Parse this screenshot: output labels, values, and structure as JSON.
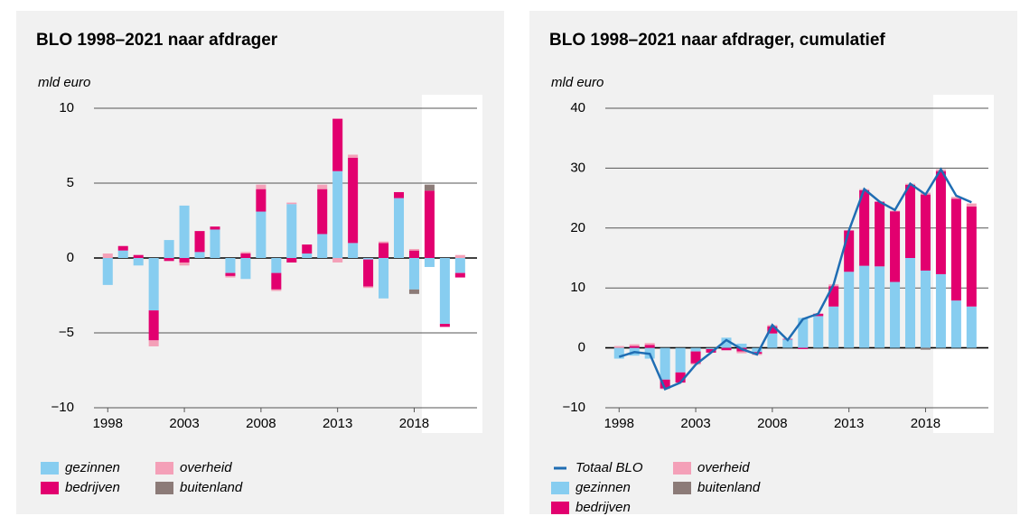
{
  "chart_data": [
    {
      "type": "bar",
      "stacked": true,
      "title": "BLO 1998–2021 naar afdrager",
      "y_label": "mld euro",
      "x": [
        1998,
        1999,
        2000,
        2001,
        2002,
        2003,
        2004,
        2005,
        2006,
        2007,
        2008,
        2009,
        2010,
        2011,
        2012,
        2013,
        2014,
        2015,
        2016,
        2017,
        2018,
        2019,
        2020,
        2021
      ],
      "xlim": [
        1997.1,
        2022.1
      ],
      "xticks": [
        1998,
        2003,
        2008,
        2013,
        2018
      ],
      "ylim": [
        -10,
        10
      ],
      "yticks": [
        {
          "value": -10,
          "label": "−10"
        },
        {
          "value": -5,
          "label": "−5"
        },
        0,
        5,
        10
      ],
      "grid": true,
      "shade_from": 2019,
      "series": [
        {
          "name": "gezinnen",
          "color": "#87cdf0",
          "values": [
            -1.8,
            0.5,
            -0.5,
            -3.5,
            1.2,
            3.5,
            0.4,
            1.9,
            -1.0,
            -1.4,
            3.1,
            -1.0,
            3.6,
            0.3,
            1.6,
            5.8,
            1.0,
            -0.1,
            -2.7,
            4.0,
            -2.1,
            -0.6,
            -4.4,
            -1.0
          ]
        },
        {
          "name": "bedrijven",
          "color": "#e2006f",
          "values": [
            0,
            0.3,
            0.2,
            -2.0,
            -0.2,
            -0.3,
            1.4,
            0.2,
            -0.2,
            0.3,
            1.5,
            -1.1,
            -0.3,
            0.6,
            3.0,
            3.5,
            5.7,
            -1.8,
            1.0,
            0.4,
            0.5,
            4.5,
            -0.2,
            -0.3
          ]
        },
        {
          "name": "overheid",
          "color": "#f4a0b8",
          "values": [
            0.3,
            0,
            0,
            -0.4,
            0,
            -0.2,
            0,
            0,
            -0.1,
            0.1,
            0.3,
            -0.1,
            0.1,
            0,
            0.3,
            -0.3,
            0.2,
            -0.1,
            0.1,
            0,
            0.1,
            0,
            0,
            0.2
          ]
        },
        {
          "name": "buitenland",
          "color": "#8c7b78",
          "values": [
            0,
            0,
            0,
            0,
            0,
            0,
            0,
            0,
            0,
            0,
            0,
            0,
            0,
            0,
            0,
            0,
            0,
            0,
            0,
            0,
            -0.3,
            0.4,
            0,
            0
          ]
        }
      ]
    },
    {
      "type": "bar",
      "stacked": true,
      "title": "BLO 1998–2021 naar afdrager, cumulatief",
      "y_label": "mld euro",
      "x": [
        1998,
        1999,
        2000,
        2001,
        2002,
        2003,
        2004,
        2005,
        2006,
        2007,
        2008,
        2009,
        2010,
        2011,
        2012,
        2013,
        2014,
        2015,
        2016,
        2017,
        2018,
        2019,
        2020,
        2021
      ],
      "xlim": [
        1997.1,
        2022.1
      ],
      "xticks": [
        1998,
        2003,
        2008,
        2013,
        2018
      ],
      "ylim": [
        -10,
        40
      ],
      "yticks": [
        {
          "value": -10,
          "label": "−10"
        },
        0,
        10,
        20,
        30,
        40
      ],
      "grid": true,
      "shade_from": 2019,
      "series": [
        {
          "name": "Totaal BLO",
          "type": "line",
          "color": "#1f6db3",
          "values": [
            -1.5,
            -0.7,
            -1.0,
            -6.9,
            -5.8,
            -2.8,
            -0.8,
            1.3,
            -0.2,
            -1.1,
            3.8,
            1.3,
            4.8,
            5.7,
            10.6,
            19.6,
            26.5,
            24.4,
            23.0,
            27.4,
            25.6,
            29.8,
            25.4,
            24.3
          ]
        },
        {
          "name": "gezinnen",
          "color": "#87cdf0",
          "values": [
            -1.8,
            -1.3,
            -1.8,
            -5.3,
            -4.1,
            -0.6,
            -0.2,
            1.7,
            0.7,
            -0.7,
            2.4,
            1.4,
            5.0,
            5.3,
            6.9,
            12.7,
            13.7,
            13.6,
            11.0,
            15.0,
            12.9,
            12.3,
            7.9,
            6.9
          ]
        },
        {
          "name": "bedrijven",
          "color": "#e2006f",
          "values": [
            0,
            0.3,
            0.5,
            -1.5,
            -1.7,
            -2.0,
            -0.6,
            -0.4,
            -0.6,
            -0.3,
            1.2,
            0.1,
            -0.2,
            0.4,
            3.4,
            6.9,
            12.6,
            10.8,
            11.8,
            12.2,
            12.7,
            17.2,
            17.0,
            16.7
          ]
        },
        {
          "name": "overheid",
          "color": "#f4a0b8",
          "values": [
            0.3,
            0.3,
            0.3,
            -0.1,
            0,
            -0.2,
            0,
            0,
            -0.3,
            -0.2,
            0.2,
            0,
            0,
            0,
            0.3,
            0,
            0.2,
            0,
            0.1,
            0.2,
            0.3,
            0.3,
            0.3,
            0.5
          ]
        },
        {
          "name": "buitenland",
          "color": "#8c7b78",
          "values": [
            0,
            0,
            0,
            0,
            0,
            0,
            0,
            0,
            0,
            0,
            0,
            0,
            0,
            0,
            0,
            0,
            0,
            0,
            0,
            0,
            -0.3,
            0,
            0,
            0
          ]
        }
      ]
    }
  ]
}
